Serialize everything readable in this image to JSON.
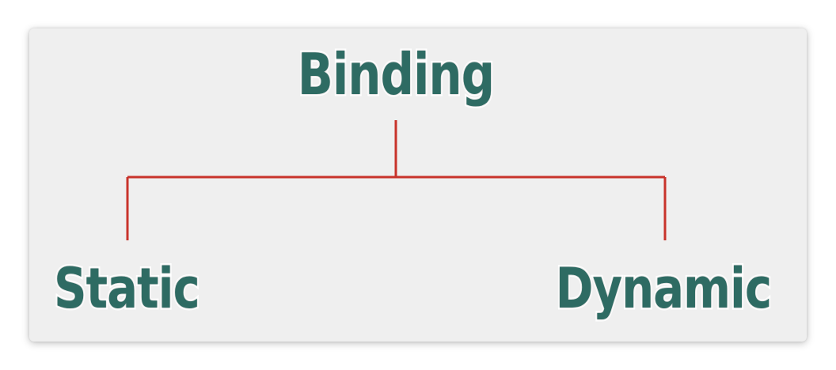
{
  "diagram": {
    "root": {
      "label": "Binding"
    },
    "children": [
      {
        "label": "Static"
      },
      {
        "label": "Dynamic"
      }
    ]
  },
  "colors": {
    "background": "#efefef",
    "text": "#2e6b63",
    "connector": "#c8332b"
  }
}
